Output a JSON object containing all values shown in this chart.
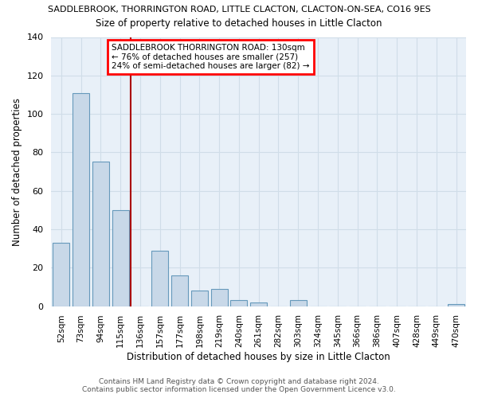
{
  "title_top": "SADDLEBROOK, THORRINGTON ROAD, LITTLE CLACTON, CLACTON-ON-SEA, CO16 9ES",
  "title_sub": "Size of property relative to detached houses in Little Clacton",
  "xlabel": "Distribution of detached houses by size in Little Clacton",
  "ylabel": "Number of detached properties",
  "bar_labels": [
    "52sqm",
    "73sqm",
    "94sqm",
    "115sqm",
    "136sqm",
    "157sqm",
    "177sqm",
    "198sqm",
    "219sqm",
    "240sqm",
    "261sqm",
    "282sqm",
    "303sqm",
    "324sqm",
    "345sqm",
    "366sqm",
    "386sqm",
    "407sqm",
    "428sqm",
    "449sqm",
    "470sqm"
  ],
  "bar_values": [
    33,
    111,
    75,
    50,
    0,
    29,
    16,
    8,
    9,
    3,
    2,
    0,
    3,
    0,
    0,
    0,
    0,
    0,
    0,
    0,
    1
  ],
  "bar_color": "#c8d8e8",
  "bar_edge_color": "#6699bb",
  "vline_color": "#aa0000",
  "ylim": [
    0,
    140
  ],
  "yticks": [
    0,
    20,
    40,
    60,
    80,
    100,
    120,
    140
  ],
  "annotation_lines": [
    "SADDLEBROOK THORRINGTON ROAD: 130sqm",
    "← 76% of detached houses are smaller (257)",
    "24% of semi-detached houses are larger (82) →"
  ],
  "footer_line1": "Contains HM Land Registry data © Crown copyright and database right 2024.",
  "footer_line2": "Contains public sector information licensed under the Open Government Licence v3.0.",
  "grid_color": "#d0dde8",
  "background_color": "#e8f0f8"
}
